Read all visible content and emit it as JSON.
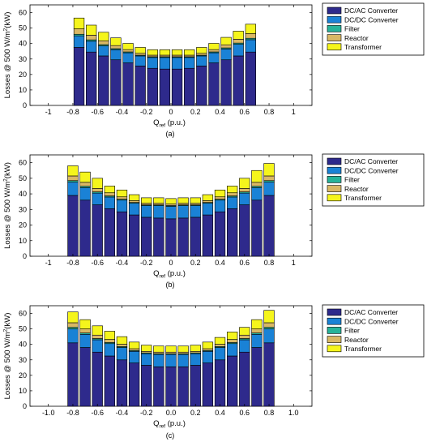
{
  "chart_data": [
    {
      "type": "bar",
      "stacked": true,
      "panel_label": "(a)",
      "ylabel": "Losses @ 500 W/m2(kW)",
      "ylabel_parts": {
        "pre": "Losses @ 500 W/m",
        "sup": "2",
        "post": "(kW)"
      },
      "xlabel": "Qref (p.u.)",
      "xlabel_parts": {
        "main": "Q",
        "sub": "ref",
        "post": " (p.u.)"
      },
      "xlim": [
        -1.15,
        1.15
      ],
      "ylim": [
        0,
        65
      ],
      "xticks": [
        -1,
        -0.8,
        -0.6,
        -0.4,
        -0.2,
        0,
        0.2,
        0.4,
        0.6,
        0.8,
        1
      ],
      "xtick_labels": [
        "-1",
        "-0.8",
        "-0.6",
        "-0.4",
        "-0.2",
        "0",
        "0.2",
        "0.4",
        "0.6",
        "0.8",
        "1"
      ],
      "yticks": [
        0,
        10,
        20,
        30,
        40,
        50,
        60
      ],
      "grid": false,
      "legend_position": "right",
      "categories": [
        -0.75,
        -0.65,
        -0.55,
        -0.45,
        -0.35,
        -0.25,
        -0.15,
        -0.05,
        0.05,
        0.15,
        0.25,
        0.35,
        0.45,
        0.55,
        0.65
      ],
      "series": [
        {
          "name": "DC/AC Converter",
          "color": "#2e2a8c",
          "values": [
            37.5,
            34.5,
            32,
            29.5,
            27.5,
            25.5,
            24,
            23.5,
            23.5,
            24,
            25.5,
            27.5,
            29.5,
            32,
            34.5
          ]
        },
        {
          "name": "DC/DC Converter",
          "color": "#1a82d6",
          "values": [
            7.5,
            7,
            6.5,
            6.5,
            6.5,
            6.5,
            7,
            7.5,
            7.5,
            7,
            6.5,
            6.5,
            7,
            7.5,
            8
          ]
        },
        {
          "name": "Filter",
          "color": "#27b39a",
          "values": [
            1,
            0.9,
            0.8,
            0.7,
            0.6,
            0.5,
            0.5,
            0.5,
            0.5,
            0.5,
            0.5,
            0.6,
            0.7,
            0.8,
            0.9
          ]
        },
        {
          "name": "Reactor",
          "color": "#d9b865",
          "values": [
            3.5,
            3,
            2.5,
            2,
            1.5,
            1.2,
            1,
            1,
            1,
            1,
            1.2,
            1.5,
            2,
            2.5,
            3
          ]
        },
        {
          "name": "Transformer",
          "color": "#f5f51c",
          "values": [
            7,
            6.5,
            5.5,
            5,
            4,
            3.8,
            3.5,
            3.5,
            3.5,
            3.5,
            3.8,
            4,
            4.8,
            5.2,
            6.1
          ]
        }
      ]
    },
    {
      "type": "bar",
      "stacked": true,
      "panel_label": "(b)",
      "ylabel": "Losses @ 500 W/m2(kW)",
      "ylabel_parts": {
        "pre": "Losses @ 500 W/m",
        "sup": "2",
        "post": "(kW)"
      },
      "xlabel": "Qref (p.u.)",
      "xlabel_parts": {
        "main": "Q",
        "sub": "ref",
        "post": " (p.u.)"
      },
      "xlim": [
        -1.15,
        1.15
      ],
      "ylim": [
        0,
        65
      ],
      "xticks": [
        -1,
        -0.8,
        -0.6,
        -0.4,
        -0.2,
        0,
        0.2,
        0.4,
        0.6,
        0.8,
        1
      ],
      "xtick_labels": [
        "-1",
        "-0.8",
        "-0.6",
        "-0.4",
        "-0.2",
        "0",
        "0.2",
        "0.4",
        "0.6",
        "0.8",
        "1"
      ],
      "yticks": [
        0,
        10,
        20,
        30,
        40,
        50,
        60
      ],
      "grid": false,
      "legend_position": "right",
      "categories": [
        -0.8,
        -0.7,
        -0.6,
        -0.5,
        -0.4,
        -0.3,
        -0.2,
        -0.1,
        0,
        0.1,
        0.2,
        0.3,
        0.4,
        0.5,
        0.6,
        0.7,
        0.8
      ],
      "series": [
        {
          "name": "DC/AC Converter",
          "color": "#2e2a8c",
          "values": [
            39,
            36,
            33,
            30.5,
            28.5,
            26.5,
            25,
            24.5,
            24,
            24.5,
            25,
            26.5,
            28.5,
            30.5,
            33,
            36,
            39
          ]
        },
        {
          "name": "DC/DC Converter",
          "color": "#1a82d6",
          "values": [
            8.5,
            8,
            7.5,
            7.5,
            7.5,
            7.5,
            7.5,
            8,
            8,
            8,
            7.5,
            7.5,
            7.5,
            7.5,
            7.5,
            8,
            8.5
          ]
        },
        {
          "name": "Filter",
          "color": "#27b39a",
          "values": [
            1,
            0.9,
            0.8,
            0.7,
            0.6,
            0.5,
            0.5,
            0.5,
            0.5,
            0.5,
            0.5,
            0.5,
            0.6,
            0.7,
            0.8,
            0.9,
            1
          ]
        },
        {
          "name": "Reactor",
          "color": "#d9b865",
          "values": [
            3,
            2.5,
            2.2,
            2,
            1.5,
            1.2,
            1,
            1,
            1,
            1,
            1,
            1.2,
            1.5,
            2,
            2.2,
            2.5,
            3
          ]
        },
        {
          "name": "Transformer",
          "color": "#f5f51c",
          "values": [
            6.5,
            6.6,
            6.5,
            4.3,
            4.4,
            3.8,
            3.5,
            3.5,
            3.5,
            3.5,
            3.5,
            3.8,
            4.4,
            4.3,
            6.5,
            7.6,
            8
          ]
        }
      ]
    },
    {
      "type": "bar",
      "stacked": true,
      "panel_label": "(c)",
      "ylabel": "Losses @ 500 W/m2(kW)",
      "ylabel_parts": {
        "pre": "Losses @ 500 W/m",
        "sup": "2",
        "post": "(kW)"
      },
      "xlabel": "Qref (p.u.)",
      "xlabel_parts": {
        "main": "Q",
        "sub": "ref",
        "post": " (p.u.)"
      },
      "xlim": [
        -1.15,
        1.15
      ],
      "ylim": [
        0,
        65
      ],
      "xticks": [
        -1,
        -0.8,
        -0.6,
        -0.4,
        -0.2,
        0,
        0.2,
        0.4,
        0.6,
        0.8,
        1
      ],
      "xtick_labels": [
        "-1.0",
        "-0.8",
        "-0.6",
        "-0.4",
        "-0.2",
        "0.0",
        "0.2",
        "0.4",
        "0.6",
        "0.8",
        "1.0"
      ],
      "yticks": [
        0,
        10,
        20,
        30,
        40,
        50,
        60
      ],
      "grid": false,
      "legend_position": "right",
      "categories": [
        -0.8,
        -0.7,
        -0.6,
        -0.5,
        -0.4,
        -0.3,
        -0.2,
        -0.1,
        0,
        0.1,
        0.2,
        0.3,
        0.4,
        0.5,
        0.6,
        0.7,
        0.8
      ],
      "series": [
        {
          "name": "DC/AC Converter",
          "color": "#2e2a8c",
          "values": [
            41,
            38,
            35,
            32.5,
            30,
            28,
            26.5,
            25.5,
            25.5,
            25.5,
            26.5,
            28,
            30,
            32.5,
            35,
            38,
            41
          ]
        },
        {
          "name": "DC/DC Converter",
          "color": "#1a82d6",
          "values": [
            9,
            8.5,
            8,
            8,
            8,
            7.5,
            7.5,
            8,
            8,
            8,
            7.5,
            7.5,
            8,
            8,
            8,
            8.5,
            9
          ]
        },
        {
          "name": "Filter",
          "color": "#27b39a",
          "values": [
            1,
            0.9,
            0.8,
            0.7,
            0.6,
            0.5,
            0.5,
            0.5,
            0.5,
            0.5,
            0.5,
            0.5,
            0.6,
            0.7,
            0.8,
            0.9,
            1
          ]
        },
        {
          "name": "Reactor",
          "color": "#d9b865",
          "values": [
            3,
            2.6,
            2.2,
            2,
            1.5,
            1.2,
            1,
            1,
            1,
            1,
            1,
            1.2,
            1.5,
            2,
            2.2,
            2.6,
            3
          ]
        },
        {
          "name": "Transformer",
          "color": "#f5f51c",
          "values": [
            7,
            6,
            6,
            5.3,
            4.9,
            4.3,
            4,
            4,
            4,
            4,
            4,
            4.3,
            4.4,
            4.8,
            5,
            6,
            8
          ]
        }
      ]
    }
  ]
}
